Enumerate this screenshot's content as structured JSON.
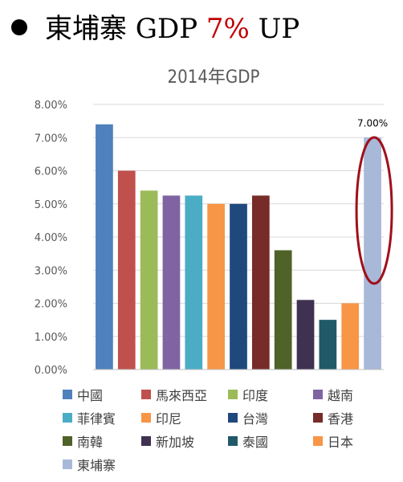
{
  "headline": {
    "prefix": "東埔寨 GDP ",
    "accent": "7%",
    "suffix": " UP"
  },
  "chart_data": {
    "type": "bar",
    "title": "2014年GDP",
    "categories": [
      "中國",
      "馬來西亞",
      "印度",
      "越南",
      "菲律賓",
      "印尼",
      "台灣",
      "香港",
      "南韓",
      "新加坡",
      "泰國",
      "日本",
      "東埔寨"
    ],
    "values": [
      0.074,
      0.06,
      0.054,
      0.0525,
      0.0525,
      0.05,
      0.05,
      0.0525,
      0.036,
      0.021,
      0.015,
      0.02,
      0.07
    ],
    "colors": [
      "#4f81bd",
      "#c0504d",
      "#9bbb59",
      "#8064a2",
      "#4bacc6",
      "#f79646",
      "#1f497d",
      "#772c2a",
      "#4f6228",
      "#3f3151",
      "#215968",
      "#f79646",
      "#a8b8d8"
    ],
    "ylim": [
      0,
      0.08
    ],
    "yticks": [
      "0.00%",
      "1.00%",
      "2.00%",
      "3.00%",
      "4.00%",
      "5.00%",
      "6.00%",
      "7.00%",
      "8.00%"
    ],
    "data_labels": [
      {
        "index": 12,
        "text": "7.00%"
      }
    ],
    "highlight": {
      "index": 12,
      "shape": "ellipse",
      "color": "#a0101a"
    },
    "legend": "bottom"
  }
}
